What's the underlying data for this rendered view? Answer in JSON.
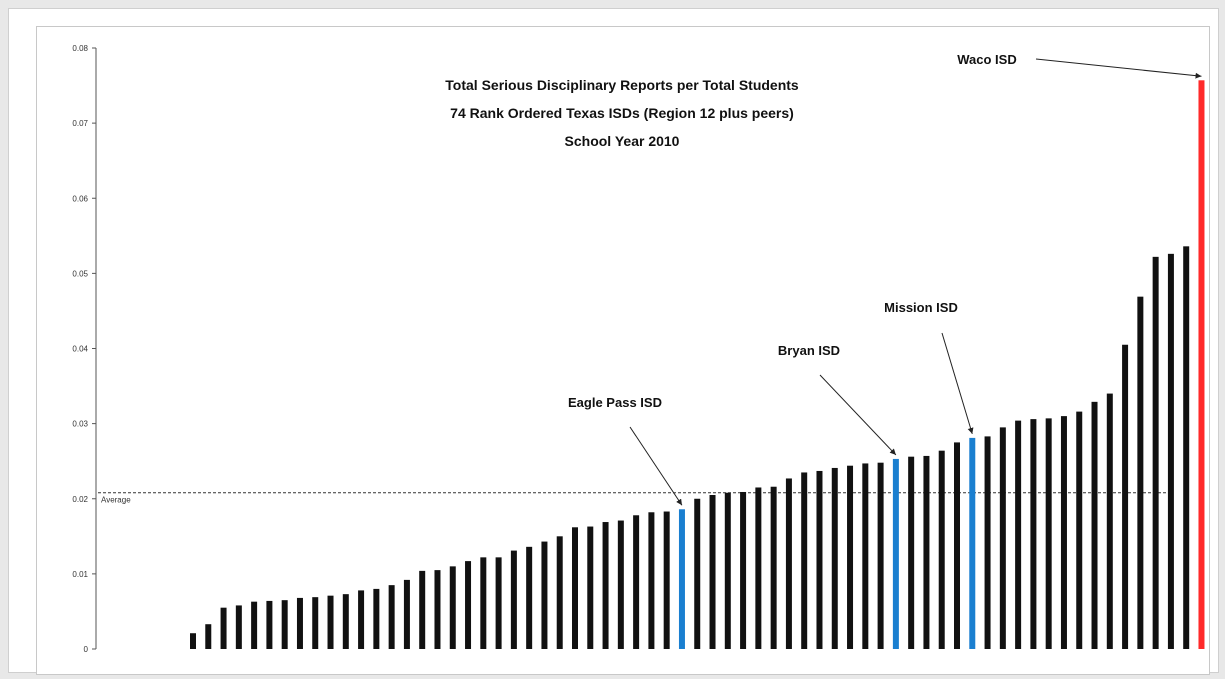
{
  "chart_data": {
    "type": "bar",
    "title_lines": [
      "Total Serious Disciplinary Reports per Total Students",
      "74 Rank Ordered Texas ISDs (Region 12 plus peers)",
      "School Year 2010"
    ],
    "ylim": [
      0,
      0.08
    ],
    "yticks": [
      {
        "value": 0,
        "label": "0"
      },
      {
        "value": 0.01,
        "label": "0.01"
      },
      {
        "value": 0.02,
        "label": "0.02"
      },
      {
        "value": 0.03,
        "label": "0.03"
      },
      {
        "value": 0.04,
        "label": "0.04"
      },
      {
        "value": 0.05,
        "label": "0.05"
      },
      {
        "value": 0.06,
        "label": "0.06"
      },
      {
        "value": 0.07,
        "label": "0.07"
      },
      {
        "value": 0.08,
        "label": "0.08"
      }
    ],
    "grid": false,
    "values": [
      0,
      0,
      0,
      0,
      0,
      0,
      0,
      0.0021,
      0.0033,
      0.0055,
      0.0058,
      0.0063,
      0.0064,
      0.0065,
      0.0068,
      0.0069,
      0.0071,
      0.0073,
      0.0078,
      0.008,
      0.0085,
      0.0092,
      0.0104,
      0.0105,
      0.011,
      0.0117,
      0.0122,
      0.0122,
      0.0131,
      0.0136,
      0.0143,
      0.015,
      0.0162,
      0.0163,
      0.0169,
      0.0171,
      0.0178,
      0.0182,
      0.0183,
      0.0186,
      0.02,
      0.0205,
      0.0208,
      0.0209,
      0.0215,
      0.0216,
      0.0227,
      0.0235,
      0.0237,
      0.0241,
      0.0244,
      0.0247,
      0.0248,
      0.0253,
      0.0256,
      0.0257,
      0.0264,
      0.0275,
      0.0281,
      0.0283,
      0.0295,
      0.0304,
      0.0306,
      0.0307,
      0.031,
      0.0316,
      0.0329,
      0.034,
      0.0405,
      0.0469,
      0.0522,
      0.0526,
      0.0536,
      0.0757
    ],
    "highlight": [
      {
        "index": 39,
        "color": "#1a7fd0"
      },
      {
        "index": 53,
        "color": "#1a7fd0"
      },
      {
        "index": 58,
        "color": "#1a7fd0"
      },
      {
        "index": 73,
        "color": "#ff2a2a"
      }
    ],
    "bar_color": "#111111",
    "average": {
      "value": 0.0208,
      "label": "Average"
    },
    "annotations": [
      {
        "text": "Eagle Pass ISD",
        "index": 39
      },
      {
        "text": "Bryan ISD",
        "index": 53
      },
      {
        "text": "Mission ISD",
        "index": 58
      },
      {
        "text": "Waco ISD",
        "index": 73
      }
    ]
  }
}
